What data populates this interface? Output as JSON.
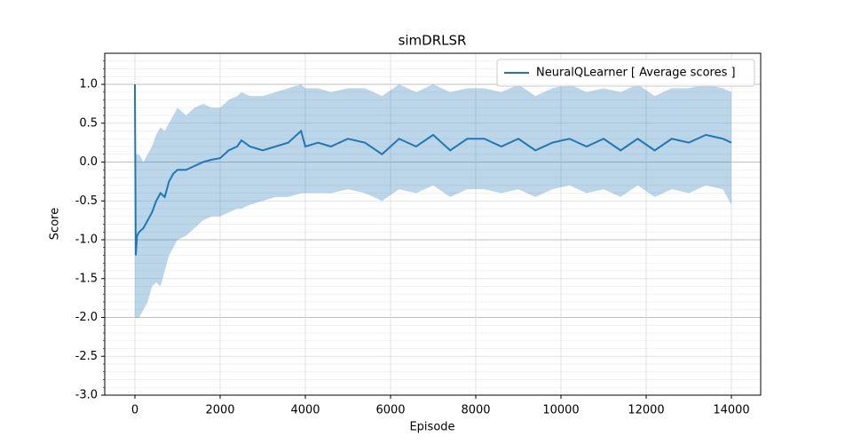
{
  "chart_data": {
    "type": "line",
    "title": "simDRLSR",
    "xlabel": "Episode",
    "ylabel": "Score",
    "x": [
      0,
      20,
      50,
      100,
      200,
      300,
      400,
      500,
      600,
      700,
      800,
      900,
      1000,
      1200,
      1400,
      1600,
      1800,
      2000,
      2200,
      2400,
      2500,
      2700,
      3000,
      3300,
      3600,
      3900,
      4000,
      4300,
      4600,
      5000,
      5400,
      5800,
      6200,
      6600,
      7000,
      7400,
      7800,
      8200,
      8600,
      9000,
      9400,
      9800,
      10200,
      10600,
      11000,
      11400,
      11800,
      12200,
      12600,
      13000,
      13400,
      13800,
      14000
    ],
    "series": [
      {
        "name": "NeuralQLearner [ Average scores ]",
        "color": "#1f77b4",
        "values": [
          1.0,
          -1.2,
          -0.95,
          -0.9,
          -0.85,
          -0.75,
          -0.65,
          -0.5,
          -0.4,
          -0.45,
          -0.25,
          -0.15,
          -0.1,
          -0.1,
          -0.05,
          0.0,
          0.03,
          0.05,
          0.15,
          0.2,
          0.28,
          0.2,
          0.15,
          0.2,
          0.25,
          0.4,
          0.2,
          0.25,
          0.2,
          0.3,
          0.25,
          0.1,
          0.3,
          0.2,
          0.35,
          0.15,
          0.3,
          0.3,
          0.2,
          0.3,
          0.15,
          0.25,
          0.3,
          0.2,
          0.3,
          0.15,
          0.3,
          0.15,
          0.3,
          0.25,
          0.35,
          0.3,
          0.25
        ]
      }
    ],
    "band": {
      "color": "#1f77b4",
      "upper": [
        1.0,
        0.1,
        0.1,
        0.1,
        0.0,
        0.1,
        0.2,
        0.35,
        0.45,
        0.4,
        0.5,
        0.6,
        0.7,
        0.6,
        0.7,
        0.75,
        0.7,
        0.7,
        0.8,
        0.85,
        0.9,
        0.85,
        0.85,
        0.9,
        0.95,
        1.0,
        0.95,
        0.95,
        0.9,
        0.95,
        0.95,
        0.85,
        1.0,
        0.9,
        1.0,
        0.9,
        0.95,
        0.95,
        0.9,
        1.0,
        0.85,
        0.95,
        1.0,
        0.9,
        0.95,
        0.9,
        1.0,
        0.85,
        0.95,
        0.95,
        1.0,
        0.95,
        0.9
      ],
      "lower": [
        -2.0,
        -2.0,
        -2.0,
        -2.0,
        -1.9,
        -1.8,
        -1.6,
        -1.55,
        -1.6,
        -1.4,
        -1.2,
        -1.1,
        -1.0,
        -0.95,
        -0.85,
        -0.75,
        -0.7,
        -0.7,
        -0.65,
        -0.6,
        -0.6,
        -0.55,
        -0.5,
        -0.45,
        -0.45,
        -0.4,
        -0.4,
        -0.4,
        -0.4,
        -0.35,
        -0.4,
        -0.5,
        -0.35,
        -0.4,
        -0.3,
        -0.45,
        -0.35,
        -0.35,
        -0.4,
        -0.35,
        -0.45,
        -0.35,
        -0.3,
        -0.4,
        -0.35,
        -0.45,
        -0.3,
        -0.45,
        -0.35,
        -0.4,
        -0.3,
        -0.35,
        -0.55
      ]
    },
    "xlim": [
      -708,
      14687
    ],
    "ylim": [
      -3.0,
      1.4
    ],
    "xticks": [
      0,
      2000,
      4000,
      6000,
      8000,
      10000,
      12000,
      14000
    ],
    "yticks": [
      {
        "value": -3,
        "label": "-3.0"
      },
      -2.5,
      {
        "value": -2,
        "label": "-2.0"
      },
      -1.5,
      {
        "value": -1,
        "label": "-1.0"
      },
      -0.5,
      {
        "value": 0,
        "label": "0.0"
      },
      0.5,
      {
        "value": 1,
        "label": "1.0"
      }
    ],
    "yminorticks": [
      -2.9,
      -2.8,
      -2.7,
      -2.6,
      -2.4,
      -2.3,
      -2.2,
      -2.1,
      -1.9,
      -1.8,
      -1.7,
      -1.6,
      -1.4,
      -1.3,
      -1.2,
      -1.1,
      -0.9,
      -0.8,
      -0.7,
      -0.6,
      -0.4,
      -0.3,
      -0.2,
      -0.1,
      0.1,
      0.2,
      0.3,
      0.4,
      0.6,
      0.7,
      0.8,
      0.9,
      1.1,
      1.2,
      1.3
    ],
    "grid": true,
    "legend": "upper right"
  }
}
